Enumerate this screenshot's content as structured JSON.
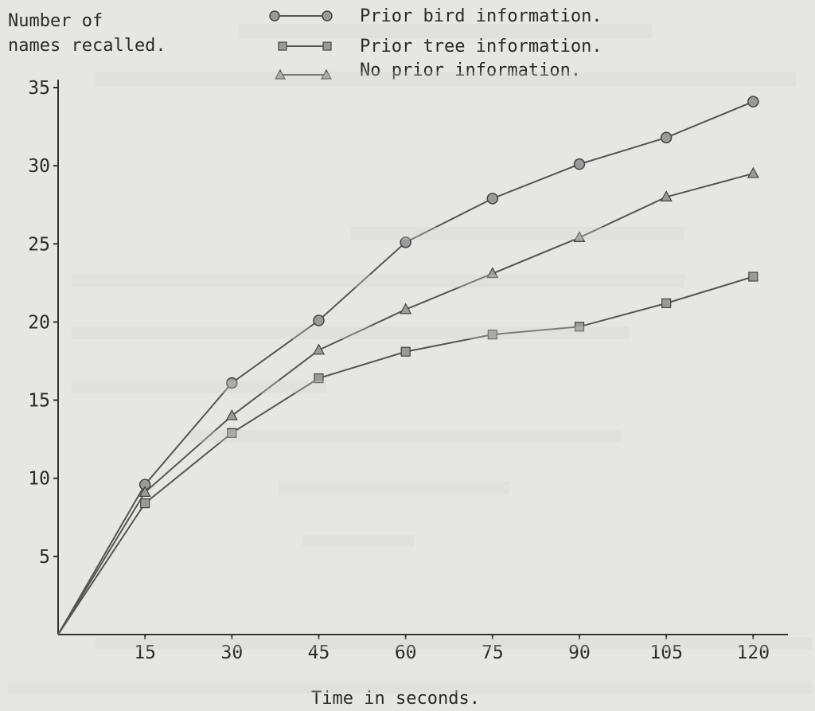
{
  "chart_data": {
    "type": "line",
    "title": "",
    "ylabel": [
      "Number of",
      "names recalled."
    ],
    "xlabel": "Time in seconds.",
    "x": [
      0,
      15,
      30,
      45,
      60,
      75,
      90,
      105,
      120
    ],
    "xticks": [
      "15",
      "30",
      "45",
      "60",
      "75",
      "90",
      "105",
      "120"
    ],
    "xtick_values": [
      15,
      30,
      45,
      60,
      75,
      90,
      105,
      120
    ],
    "yticks": [
      "5",
      "10",
      "15",
      "20",
      "25",
      "30",
      "35"
    ],
    "ytick_values": [
      5,
      10,
      15,
      20,
      25,
      30,
      35
    ],
    "xlim": [
      0,
      126
    ],
    "ylim": [
      0,
      35
    ],
    "grid": false,
    "legend_position": "top",
    "series": [
      {
        "name": "Prior bird information.",
        "marker": "circle",
        "values": [
          0,
          9.6,
          16.1,
          20.1,
          25.1,
          27.9,
          30.1,
          31.8,
          34.1
        ]
      },
      {
        "name": "Prior tree information.",
        "marker": "square",
        "values": [
          0,
          8.4,
          12.9,
          16.4,
          18.1,
          19.2,
          19.7,
          21.2,
          22.9
        ]
      },
      {
        "name": "No prior information.",
        "marker": "triangle",
        "values": [
          0,
          9.1,
          14.0,
          18.2,
          20.8,
          23.1,
          25.4,
          28.0,
          29.5
        ]
      }
    ]
  }
}
